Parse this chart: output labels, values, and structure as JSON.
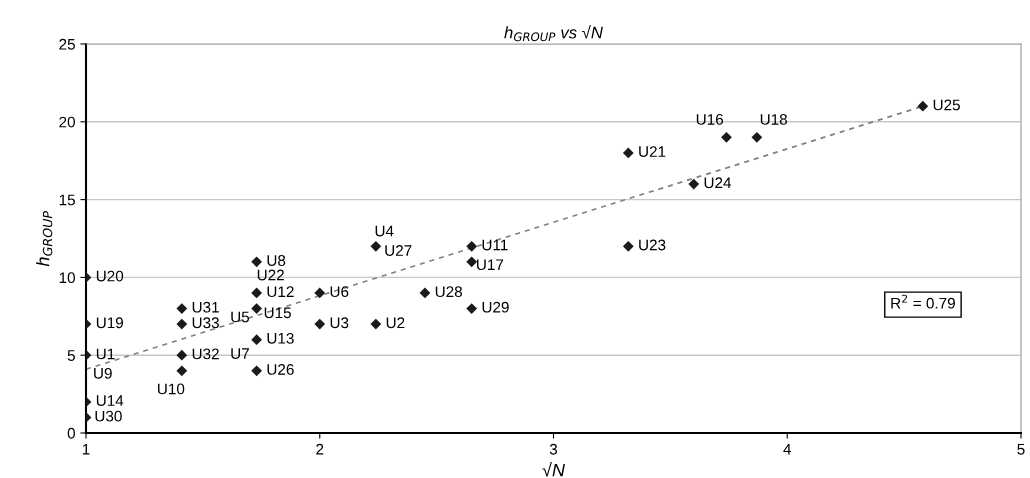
{
  "chart_data": {
    "type": "scatter",
    "title": "h$_{GROUP}$ vs √N",
    "xlabel": "√N",
    "ylabel": "h$_{GROUP}$",
    "xlim": [
      1,
      5
    ],
    "xticks": [
      1,
      2,
      3,
      4,
      5
    ],
    "ylim": [
      0,
      25
    ],
    "yticks": [
      0,
      5,
      10,
      15,
      20,
      25
    ],
    "grid": "y",
    "series": [
      {
        "marker": "diamond",
        "color": "#1a1a1a",
        "x": [
          1,
          1,
          1,
          1,
          1,
          1.41,
          1.41,
          1.41,
          1.41,
          1.73,
          1.73,
          1.73,
          1.73,
          1.73,
          2,
          2,
          2.24,
          2.24,
          2.45,
          2.65,
          2.65,
          2.65,
          3.32,
          3.32,
          3.6,
          3.74,
          3.87,
          4.58
        ],
        "values": [
          10,
          7,
          5,
          2,
          1,
          8,
          7,
          5,
          4,
          11,
          9,
          8,
          6,
          4,
          9,
          7,
          12,
          7,
          9,
          12,
          11,
          8,
          18,
          12,
          16,
          19,
          19,
          21
        ]
      },
      {
        "type": "line",
        "color": "#808080",
        "line_style": "dashed",
        "x": [
          1,
          4.58
        ],
        "values": [
          4.1,
          21
        ]
      }
    ],
    "annotations": [
      {
        "text": "U20",
        "x": 1,
        "y": 10
      },
      {
        "text": "U19",
        "x": 1,
        "y": 7
      },
      {
        "text": "U1",
        "x": 1,
        "y": 5
      },
      {
        "text": "U9",
        "x": 1,
        "y": 5
      },
      {
        "text": "U14",
        "x": 1,
        "y": 2
      },
      {
        "text": "U30",
        "x": 1,
        "y": 1
      },
      {
        "text": "U31",
        "x": 1.41,
        "y": 8
      },
      {
        "text": "U33",
        "x": 1.41,
        "y": 7
      },
      {
        "text": "U32",
        "x": 1.41,
        "y": 5
      },
      {
        "text": "U10",
        "x": 1.41,
        "y": 4
      },
      {
        "text": "U8",
        "x": 1.73,
        "y": 11
      },
      {
        "text": "U22",
        "x": 1.73,
        "y": 9
      },
      {
        "text": "U12",
        "x": 1.73,
        "y": 9
      },
      {
        "text": "U15",
        "x": 1.73,
        "y": 8
      },
      {
        "text": "U5",
        "x": 1.73,
        "y": 8
      },
      {
        "text": "U13",
        "x": 1.73,
        "y": 6
      },
      {
        "text": "U7",
        "x": 1.73,
        "y": 6
      },
      {
        "text": "U26",
        "x": 1.73,
        "y": 4
      },
      {
        "text": "U6",
        "x": 2,
        "y": 9
      },
      {
        "text": "U3",
        "x": 2,
        "y": 7
      },
      {
        "text": "U4",
        "x": 2.24,
        "y": 12
      },
      {
        "text": "U27",
        "x": 2.24,
        "y": 12
      },
      {
        "text": "U2",
        "x": 2.24,
        "y": 7
      },
      {
        "text": "U28",
        "x": 2.45,
        "y": 9
      },
      {
        "text": "U11",
        "x": 2.65,
        "y": 12
      },
      {
        "text": "U17",
        "x": 2.65,
        "y": 11
      },
      {
        "text": "U29",
        "x": 2.65,
        "y": 8
      },
      {
        "text": "U21",
        "x": 3.32,
        "y": 18
      },
      {
        "text": "U23",
        "x": 3.32,
        "y": 12
      },
      {
        "text": "U24",
        "x": 3.6,
        "y": 16
      },
      {
        "text": "U16",
        "x": 3.74,
        "y": 19
      },
      {
        "text": "U18",
        "x": 3.87,
        "y": 19
      },
      {
        "text": "U25",
        "x": 4.58,
        "y": 21
      },
      "R$^{2}$ = 0.79"
    ]
  }
}
